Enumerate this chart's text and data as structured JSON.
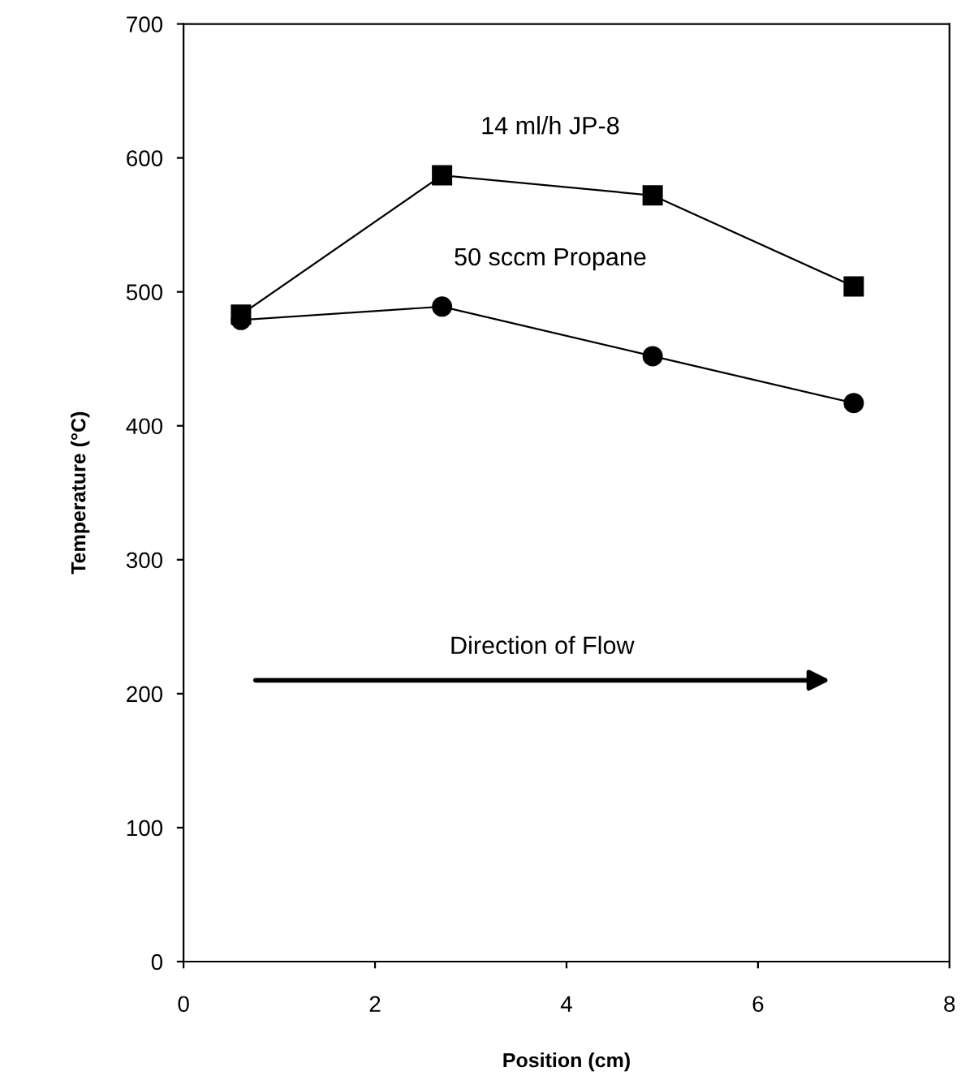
{
  "chart_data": {
    "type": "line",
    "xlabel": "Position (cm)",
    "ylabel": "Temperature (°C)",
    "xlim": [
      0,
      8
    ],
    "xticks": [
      0,
      2,
      4,
      6,
      8
    ],
    "ylim": [
      0,
      700
    ],
    "yticks": [
      0,
      100,
      200,
      300,
      400,
      500,
      600,
      700
    ],
    "grid": false,
    "legend": false,
    "line_style": "solid",
    "series": [
      {
        "name": "14 ml/h JP-8",
        "color": "#000000",
        "marker": "square",
        "x": [
          0.6,
          2.7,
          4.9,
          7.0
        ],
        "values": [
          483,
          587,
          572,
          504
        ]
      },
      {
        "name": "50 sccm Propane",
        "color": "#000000",
        "marker": "circle",
        "x": [
          0.6,
          2.7,
          4.9,
          7.0
        ],
        "values": [
          479,
          489,
          452,
          417
        ]
      }
    ],
    "annotations": [
      "Direction of Flow"
    ]
  }
}
